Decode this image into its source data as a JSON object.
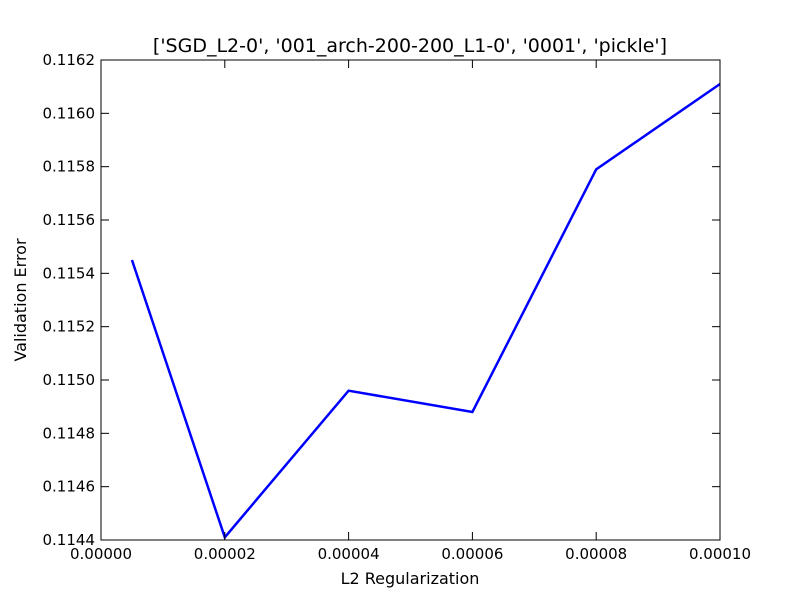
{
  "chart_data": {
    "type": "line",
    "title": "['SGD_L2-0', '001_arch-200-200_L1-0', '0001', 'pickle']",
    "xlabel": "L2 Regularization",
    "ylabel": "Validation Error",
    "xlim": [
      0.0,
      0.0001
    ],
    "ylim": [
      0.1144,
      0.1162
    ],
    "x_ticks": [
      "0.00000",
      "0.00002",
      "0.00004",
      "0.00006",
      "0.00008",
      "0.00010"
    ],
    "y_ticks": [
      "0.1144",
      "0.1146",
      "0.1148",
      "0.1150",
      "0.1152",
      "0.1154",
      "0.1156",
      "0.1158",
      "0.1160",
      "0.1162"
    ],
    "grid": false,
    "series": [
      {
        "color": "#0000ff",
        "x": [
          5e-06,
          2e-05,
          4e-05,
          6e-05,
          8e-05,
          0.0001
        ],
        "y": [
          0.11545,
          0.11441,
          0.11496,
          0.11488,
          0.11579,
          0.11611
        ]
      }
    ]
  }
}
